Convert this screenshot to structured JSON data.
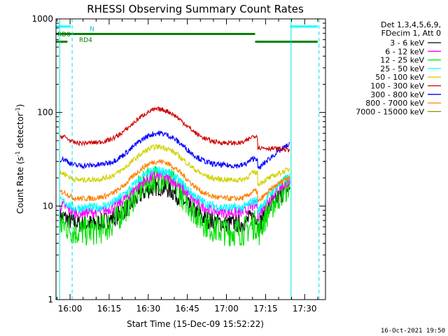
{
  "chart_data": {
    "type": "line",
    "title": "RHESSI Observing Summary Count Rates",
    "xlabel": "Start Time (15-Dec-09 15:52:22)",
    "ylabel_main": "Count Rate (s",
    "ylabel_sup1": "-1",
    "ylabel_mid": " detector",
    "ylabel_sup2": "-1",
    "ylabel_end": ")",
    "ylog": true,
    "ylim": [
      1,
      1000
    ],
    "xlim_minutes": [
      -5.4,
      98
    ],
    "x_ticks": [
      {
        "m": 0,
        "label": "16:00"
      },
      {
        "m": 15,
        "label": "16:15"
      },
      {
        "m": 30,
        "label": "16:30"
      },
      {
        "m": 45,
        "label": "16:45"
      },
      {
        "m": 60,
        "label": "17:00"
      },
      {
        "m": 75,
        "label": "17:15"
      },
      {
        "m": 90,
        "label": "17:30"
      }
    ],
    "y_ticks": [
      {
        "v": 1,
        "label": "1"
      },
      {
        "v": 10,
        "label": "10"
      },
      {
        "v": 100,
        "label": "100"
      },
      {
        "v": 1000,
        "label": "1000"
      }
    ],
    "legend_header": [
      "Det 1,3,4,5,6,9,",
      "FDecim 1, Att 0"
    ],
    "series": [
      {
        "name": "3 - 6 keV",
        "color": "#000000"
      },
      {
        "name": "6 - 12 keV",
        "color": "#ff00ff"
      },
      {
        "name": "12 - 25 keV",
        "color": "#00e000"
      },
      {
        "name": "25 - 50 keV",
        "color": "#00ffff"
      },
      {
        "name": "50 - 100 keV",
        "color": "#d2d200"
      },
      {
        "name": "100 - 300 keV",
        "color": "#d00000"
      },
      {
        "name": "300 - 800 keV",
        "color": "#0000ff"
      },
      {
        "name": "800 - 7000 keV",
        "color": "#ff8000"
      },
      {
        "name": "7000 - 15000 keV",
        "color": "#8c8c00"
      }
    ],
    "flags": [
      {
        "label": "N",
        "color": "#00ffff",
        "segments": [
          [
            -5.4,
            0.3
          ],
          [
            84.5,
            95
          ]
        ],
        "level": 830
      },
      {
        "label": "RD0",
        "color": "#008000",
        "segments": [
          [
            -5.4,
            71
          ]
        ],
        "level": 690
      },
      {
        "label": "RD4",
        "color": "#008000",
        "segments": [
          [
            -5.4,
            -1
          ],
          [
            71,
            95
          ]
        ],
        "level": 570
      }
    ],
    "night_lines_m": [
      -4.0,
      84.8
    ],
    "saa_lines_m": [
      0.8,
      95.5
    ],
    "grid": false
  },
  "footer_date": "16-Oct-2021 19:50"
}
